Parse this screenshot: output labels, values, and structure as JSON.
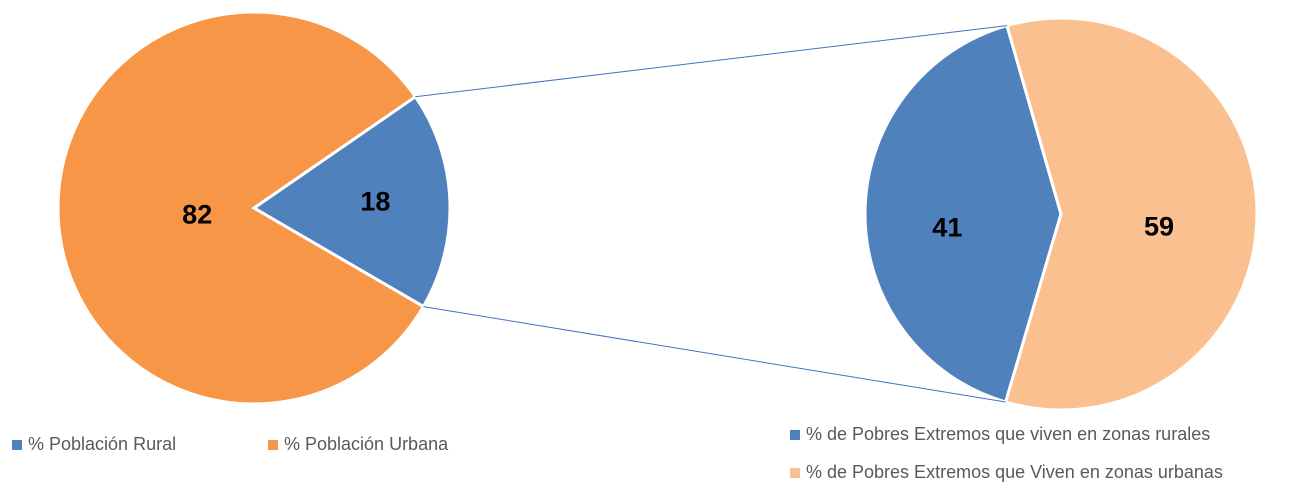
{
  "chart_data": [
    {
      "type": "pie",
      "categories": [
        "% Población Rural",
        "% Población Urbana"
      ],
      "values": [
        18,
        82
      ],
      "colors": [
        "#4f81bd",
        "#f79646"
      ]
    },
    {
      "type": "pie",
      "categories": [
        "% de Pobres Extremos que viven en zonas rurales",
        "% de Pobres Extremos que Viven en zonas urbanas"
      ],
      "values": [
        41,
        59
      ],
      "colors": [
        "#4f81bd",
        "#fac090"
      ]
    }
  ]
}
